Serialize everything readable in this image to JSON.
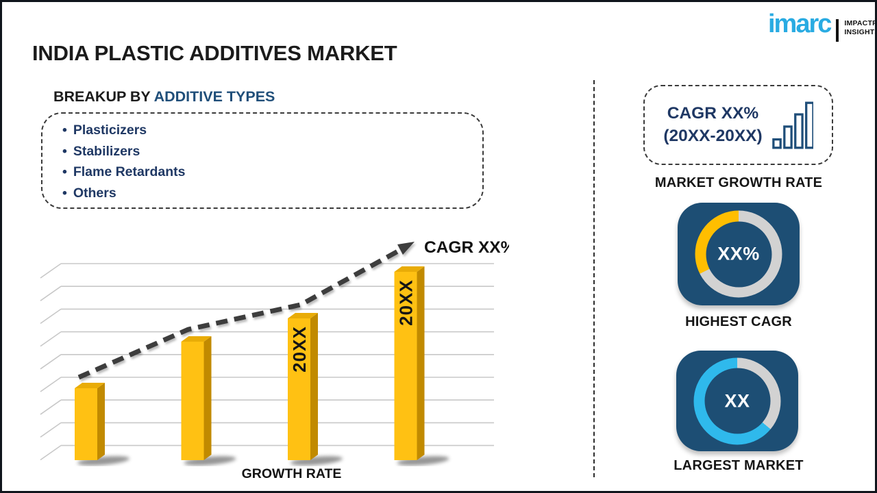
{
  "header": {
    "title": "INDIA PLASTIC ADDITIVES MARKET",
    "logo": {
      "name": "imarc",
      "tagline1": "IMPACTFUL",
      "tagline2": "INSIGHTS"
    }
  },
  "breakup": {
    "heading_prefix": "BREAKUP BY ",
    "heading_highlight": "ADDITIVE TYPES",
    "items": [
      "Plasticizers",
      "Stabilizers",
      "Flame Retardants",
      "Others"
    ]
  },
  "chart_data": {
    "type": "bar",
    "title": "",
    "xlabel": "GROWTH RATE",
    "ylabel": "",
    "grid": true,
    "value_units": "relative height (px, unlabeled axis)",
    "bars": [
      {
        "label": "",
        "value": 105
      },
      {
        "label": "",
        "value": 173
      },
      {
        "label": "20XX",
        "value": 207
      },
      {
        "label": "20XX",
        "value": 275
      }
    ],
    "trend_annotation": "CAGR XX%"
  },
  "sidebar": {
    "growth_box": {
      "line1": "CAGR XX%",
      "line2": "(20XX-20XX)"
    },
    "market_growth_label": "MARKET GROWTH RATE",
    "highest_cagr": {
      "value": "XX%",
      "label": "HIGHEST CAGR",
      "arc_deg": 117
    },
    "largest_market": {
      "value": "XX",
      "label": "LARGEST MARKET",
      "gray_deg": 130
    }
  },
  "icons": {
    "growth_bars_icon": "ascending-outlined-bar-chart",
    "trend_arrow_icon": "dashed-rising-arrow"
  },
  "colors": {
    "bar_front": "#FFC113",
    "bar_side": "#C18A00",
    "bar_top": "#E9AC07",
    "gridline": "#c8c8c8",
    "trend": "#3d3d3d",
    "navy_text": "#1F3864",
    "heading_blue": "#1F4E79",
    "card_navy": "#1D4E74",
    "donut_yellow": "#FFBE00",
    "donut_cyan": "#2FB9EC",
    "donut_gray": "#D2D2D2",
    "logo_cyan": "#29ABE2"
  }
}
